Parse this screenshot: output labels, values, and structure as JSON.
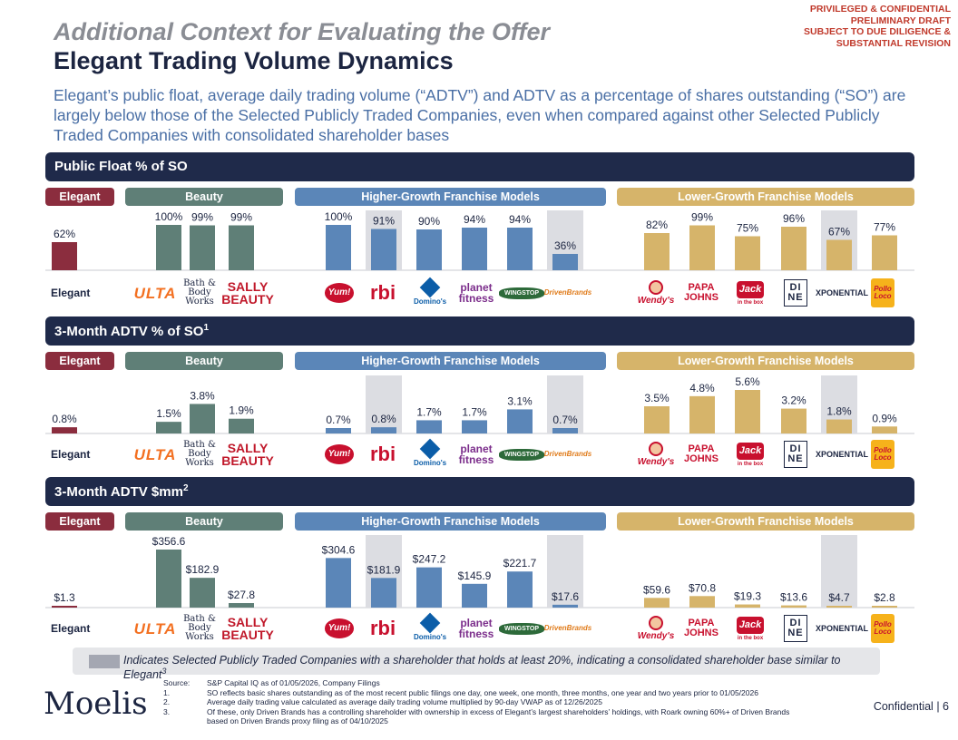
{
  "header": {
    "confidential": [
      "PRIVILEGED & CONFIDENTIAL",
      "PRELIMINARY DRAFT",
      "SUBJECT TO DUE DILIGENCE &",
      "SUBSTANTIAL REVISION"
    ],
    "title_line1": "Additional Context for Evaluating the Offer",
    "title_line2": "Elegant Trading Volume Dynamics",
    "subtitle": "Elegant’s public float, average daily trading volume (“ADTV”) and ADTV as a percentage of shares outstanding (“SO”) are largely below those of the Selected Publicly Traded Companies, even when compared against other Selected Publicly Traded Companies with consolidated shareholder bases"
  },
  "group_headers": {
    "elegant": "Elegant",
    "beauty": "Beauty",
    "higher_growth": "Higher-Growth Franchise Models",
    "lower_growth": "Lower-Growth Franchise Models"
  },
  "logo_row": {
    "elegant_label": "Elegant",
    "logos": {
      "ulta": "ULTA",
      "bath": "Bath & Body Works",
      "sally": "SALLY BEAUTY",
      "yum": "Yum!",
      "rbi": "rbi",
      "dominos": "Domino's",
      "planet": "planet fitness",
      "wingstop": "WINGSTOP",
      "driven": "DrivenBrands",
      "wendys": "Wendy's",
      "papa": "PAPA JOHNS",
      "jack": "Jack",
      "jack_sub": "in the box",
      "dine": "DI NE",
      "xponential": "XPONENTIAL",
      "pollo": "Pollo Loco"
    }
  },
  "colors": {
    "elegant": "#8b2d3e",
    "beauty": "#5f7f77",
    "higher_growth": "#5b86b8",
    "lower_growth": "#d6b46a",
    "highlight": "#dcdde2",
    "section_bar": "#1f2a4a"
  },
  "chart_data": [
    {
      "type": "bar",
      "title": "Public Float % of SO",
      "footnote_ref": "",
      "categories": [
        "Elegant",
        "ULTA",
        "Bath & Body Works",
        "Sally Beauty",
        "Yum!",
        "RBI",
        "Domino's",
        "Planet Fitness",
        "Wingstop",
        "Driven Brands",
        "Wendy's",
        "Papa John's",
        "Jack in the Box",
        "Dine Brands",
        "Xponential",
        "El Pollo Loco"
      ],
      "values": [
        62,
        100,
        99,
        99,
        100,
        91,
        90,
        94,
        94,
        36,
        82,
        99,
        75,
        96,
        67,
        77
      ],
      "labels": [
        "62%",
        "100%",
        "99%",
        "99%",
        "100%",
        "91%",
        "90%",
        "94%",
        "94%",
        "36%",
        "82%",
        "99%",
        "75%",
        "96%",
        "67%",
        "77%"
      ],
      "groups": [
        "elegant",
        "beauty",
        "beauty",
        "beauty",
        "higher_growth",
        "higher_growth",
        "higher_growth",
        "higher_growth",
        "higher_growth",
        "higher_growth",
        "lower_growth",
        "lower_growth",
        "lower_growth",
        "lower_growth",
        "lower_growth",
        "lower_growth"
      ],
      "highlighted": [
        false,
        false,
        false,
        false,
        false,
        true,
        false,
        false,
        false,
        true,
        false,
        false,
        false,
        false,
        true,
        false
      ],
      "ylim": [
        0,
        100
      ]
    },
    {
      "type": "bar",
      "title": "3-Month ADTV % of SO",
      "footnote_ref": "1",
      "categories": [
        "Elegant",
        "ULTA",
        "Bath & Body Works",
        "Sally Beauty",
        "Yum!",
        "RBI",
        "Domino's",
        "Planet Fitness",
        "Wingstop",
        "Driven Brands",
        "Wendy's",
        "Papa John's",
        "Jack in the Box",
        "Dine Brands",
        "Xponential",
        "El Pollo Loco"
      ],
      "values": [
        0.8,
        1.5,
        3.8,
        1.9,
        0.7,
        0.8,
        1.7,
        1.7,
        3.1,
        0.7,
        3.5,
        4.8,
        5.6,
        3.2,
        1.8,
        0.9
      ],
      "labels": [
        "0.8%",
        "1.5%",
        "3.8%",
        "1.9%",
        "0.7%",
        "0.8%",
        "1.7%",
        "1.7%",
        "3.1%",
        "0.7%",
        "3.5%",
        "4.8%",
        "5.6%",
        "3.2%",
        "1.8%",
        "0.9%"
      ],
      "groups": [
        "elegant",
        "beauty",
        "beauty",
        "beauty",
        "higher_growth",
        "higher_growth",
        "higher_growth",
        "higher_growth",
        "higher_growth",
        "higher_growth",
        "lower_growth",
        "lower_growth",
        "lower_growth",
        "lower_growth",
        "lower_growth",
        "lower_growth"
      ],
      "highlighted": [
        false,
        false,
        false,
        false,
        false,
        true,
        false,
        false,
        false,
        true,
        false,
        false,
        false,
        false,
        true,
        false
      ],
      "ylim": [
        0,
        5.6
      ]
    },
    {
      "type": "bar",
      "title": "3-Month ADTV $mm",
      "footnote_ref": "2",
      "categories": [
        "Elegant",
        "ULTA",
        "Bath & Body Works",
        "Sally Beauty",
        "Yum!",
        "RBI",
        "Domino's",
        "Planet Fitness",
        "Wingstop",
        "Driven Brands",
        "Wendy's",
        "Papa John's",
        "Jack in the Box",
        "Dine Brands",
        "Xponential",
        "El Pollo Loco"
      ],
      "values": [
        1.3,
        356.6,
        182.9,
        27.8,
        304.6,
        181.9,
        247.2,
        145.9,
        221.7,
        17.6,
        59.6,
        70.8,
        19.3,
        13.6,
        4.7,
        2.8
      ],
      "labels": [
        "$1.3",
        "$356.6",
        "$182.9",
        "$27.8",
        "$304.6",
        "$181.9",
        "$247.2",
        "$145.9",
        "$221.7",
        "$17.6",
        "$59.6",
        "$70.8",
        "$19.3",
        "$13.6",
        "$4.7",
        "$2.8"
      ],
      "groups": [
        "elegant",
        "beauty",
        "beauty",
        "beauty",
        "higher_growth",
        "higher_growth",
        "higher_growth",
        "higher_growth",
        "higher_growth",
        "higher_growth",
        "lower_growth",
        "lower_growth",
        "lower_growth",
        "lower_growth",
        "lower_growth",
        "lower_growth"
      ],
      "highlighted": [
        false,
        false,
        false,
        false,
        false,
        true,
        false,
        false,
        false,
        true,
        false,
        false,
        false,
        false,
        true,
        false
      ],
      "ylim": [
        0,
        356.6
      ]
    }
  ],
  "legend": {
    "text": "Indicates Selected Publicly Traded Companies with a shareholder that holds at least 20%, indicating a consolidated shareholder base similar to Elegant",
    "ref": "3"
  },
  "footnotes": [
    {
      "key": "Source:",
      "text": "S&P Capital IQ as of 01/05/2026, Company Filings"
    },
    {
      "key": "1.",
      "text": "SO reflects basic shares outstanding as of the most recent public filings one day, one week, one month, three months, one year and two years prior to 01/05/2026"
    },
    {
      "key": "2.",
      "text": "Average daily trading value calculated as average daily trading volume multiplied by 90-day VWAP as of 12/26/2025"
    },
    {
      "key": "3.",
      "text": "Of these, only Driven Brands has a controlling shareholder with ownership in excess of Elegant’s largest shareholders’ holdings, with Roark owning 60%+ of Driven Brands based on Driven Brands proxy filing as of 04/10/2025"
    }
  ],
  "footer": {
    "brand": "Moelis",
    "confidential": "Confidential",
    "separator": "|",
    "page_number": "6"
  }
}
